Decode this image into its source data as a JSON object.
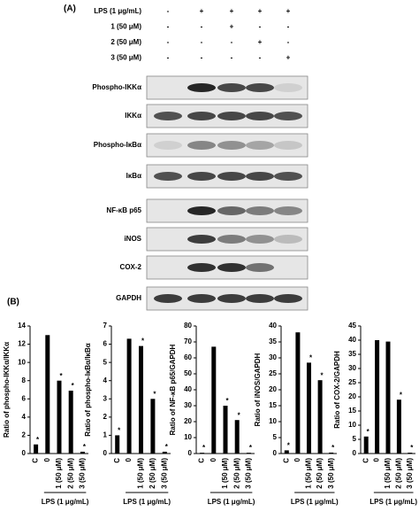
{
  "panel_a": {
    "label": "(A)",
    "treatments": [
      {
        "name": "LPS (1 μg/mL)",
        "signs": [
          "-",
          "+",
          "+",
          "+",
          "+"
        ]
      },
      {
        "name": "1  (50 μM)",
        "signs": [
          "-",
          "-",
          "+",
          "-",
          "-"
        ]
      },
      {
        "name": "2  (50 μM)",
        "signs": [
          "-",
          "-",
          "-",
          "+",
          "-"
        ]
      },
      {
        "name": "3  (50 μM)",
        "signs": [
          "-",
          "-",
          "-",
          "-",
          "+"
        ]
      }
    ],
    "blots": [
      "Phospho-IKKα",
      "IKKα",
      "Phospho-IκBα",
      "IκBα",
      "NF-κB p65",
      "iNOS",
      "COX-2",
      "GAPDH"
    ]
  },
  "panel_b": {
    "label": "(B)"
  },
  "chart_data": [
    {
      "type": "bar",
      "ylabel": "Ratio of phospho-IKKα/IKKα",
      "xlabel": "LPS (1 μg/mL)",
      "categories": [
        "C",
        "0",
        "1 (50 μM)",
        "2 (50 μM)",
        "3 (50 μM)"
      ],
      "values": [
        1,
        13,
        8,
        6.9,
        0.2
      ],
      "markers": [
        "*",
        null,
        "*",
        "*",
        "*"
      ],
      "color": "#000000",
      "ylim": [
        0,
        14
      ],
      "yticks": [
        0,
        2,
        4,
        6,
        8,
        10,
        12,
        14
      ]
    },
    {
      "type": "bar",
      "ylabel": "Ratio of phospho-IκBα/IκBα",
      "xlabel": "LPS (1 μg/mL)",
      "categories": [
        "C",
        "0",
        "1 (50 μM)",
        "2 (50 μM)",
        "3 (50 μM)"
      ],
      "values": [
        1,
        6.3,
        5.9,
        3,
        0.1
      ],
      "markers": [
        "*",
        null,
        "*",
        "*",
        "*"
      ],
      "color": "#000000",
      "ylim": [
        0,
        7
      ],
      "yticks": [
        0,
        1,
        2,
        3,
        4,
        5,
        6,
        7
      ]
    },
    {
      "type": "bar",
      "ylabel": "Ratio of NF-κB p65/GAPDH",
      "xlabel": "LPS (1 μg/mL)",
      "categories": [
        "C",
        "0",
        "1 (50 μM)",
        "2 (50 μM)",
        "3 (50 μM)"
      ],
      "values": [
        0.5,
        67,
        30,
        21,
        0.5
      ],
      "markers": [
        "*",
        null,
        "*",
        "*",
        "*"
      ],
      "color": "#000000",
      "ylim": [
        0,
        80
      ],
      "yticks": [
        0,
        10,
        20,
        30,
        40,
        50,
        60,
        70,
        80
      ]
    },
    {
      "type": "bar",
      "ylabel": "Ratio of iNOS/GAPDH",
      "xlabel": "LPS (1 μg/mL)",
      "categories": [
        "C",
        "0",
        "1 (50 μM)",
        "2 (50 μM)",
        "3 (50 μM)"
      ],
      "values": [
        1,
        38,
        28.5,
        23,
        0.3
      ],
      "markers": [
        "*",
        null,
        "*",
        "*",
        "*"
      ],
      "color": "#000000",
      "ylim": [
        0,
        40
      ],
      "yticks": [
        0,
        5,
        10,
        15,
        20,
        25,
        30,
        35,
        40
      ]
    },
    {
      "type": "bar",
      "ylabel": "Ratio of COX-2/GAPDH",
      "xlabel": "LPS (1 μg/mL)",
      "categories": [
        "C",
        "0",
        "1 (50 μM)",
        "2 (50 μM)",
        "3 (50 μM)"
      ],
      "values": [
        6,
        40,
        39.5,
        19,
        0.3
      ],
      "markers": [
        "*",
        null,
        null,
        "*",
        "*"
      ],
      "color": "#000000",
      "ylim": [
        0,
        45
      ],
      "yticks": [
        0,
        5,
        10,
        15,
        20,
        25,
        30,
        35,
        40,
        45
      ]
    }
  ]
}
